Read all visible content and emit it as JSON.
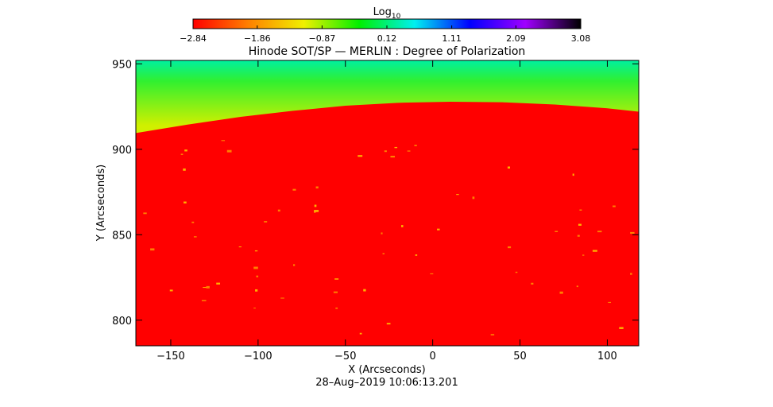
{
  "chart_data": {
    "type": "heatmap",
    "title": "Hinode SOT/SP — MERLIN : Degree of Polarization",
    "xlabel": "X (Arcseconds)",
    "ylabel": "Y (Arcseconds)",
    "xlim": [
      -170,
      118
    ],
    "ylim": [
      785,
      952
    ],
    "x_ticks": [
      -150,
      -100,
      -50,
      0,
      50,
      100
    ],
    "y_ticks": [
      800,
      850,
      900,
      950
    ],
    "x_tick_labels": [
      "−150",
      "−100",
      "−50",
      "0",
      "50",
      "100"
    ],
    "y_tick_labels": [
      "800",
      "850",
      "900",
      "950"
    ],
    "colorbar": {
      "label_main": "Log",
      "label_sub": "10",
      "min": -2.84,
      "max": 3.08,
      "ticks": [
        -2.84,
        -1.86,
        -0.87,
        0.12,
        1.11,
        2.09,
        3.08
      ],
      "tick_labels": [
        "−2.84",
        "−1.86",
        "−0.87",
        "0.12",
        "1.11",
        "2.09",
        "3.08"
      ],
      "colormap": [
        "#ff0000",
        "#ff8000",
        "#f0f000",
        "#00f000",
        "#00f0f0",
        "#0000ff",
        "#a000ff",
        "#000000"
      ]
    },
    "limb": {
      "x": [
        -170,
        -140,
        -110,
        -80,
        -50,
        -20,
        10,
        40,
        70,
        100,
        118
      ],
      "y": [
        909.5,
        914.5,
        919,
        922.5,
        925.5,
        927.2,
        927.8,
        927.5,
        926.2,
        924,
        922
      ]
    },
    "above_limb_gradient": [
      {
        "value": 1.0,
        "color": "#00f0a0"
      },
      {
        "value": 0.5,
        "color": "#30f030"
      },
      {
        "value": 0.1,
        "color": "#d0f000"
      }
    ],
    "disk_color": "#ff0000",
    "timestamp": "28–Aug–2019 10:06:13.201"
  }
}
